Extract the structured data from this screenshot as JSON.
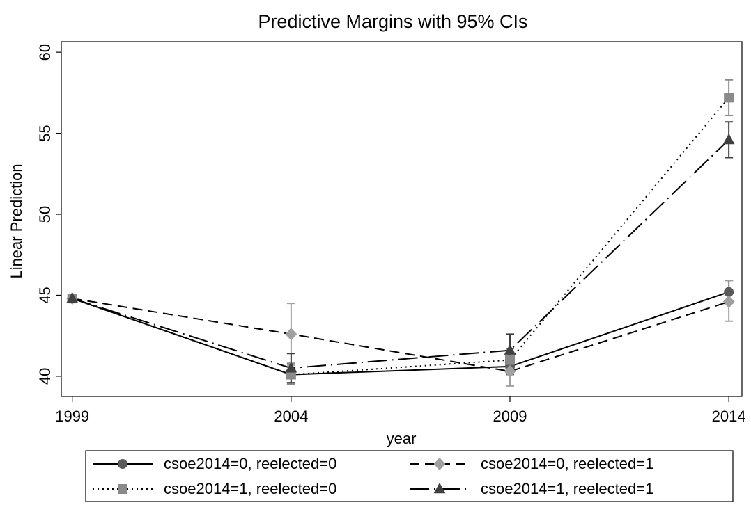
{
  "chart_data": {
    "type": "line",
    "title": "Predictive Margins with 95% CIs",
    "x_label": "year",
    "y_label": "Linear Prediction",
    "x": [
      1999,
      2004,
      2009,
      2014
    ],
    "xlim": [
      1998.75,
      2014.3
    ],
    "xticks": [
      1999,
      2004,
      2009,
      2014
    ],
    "ylim": [
      38.75,
      60.65
    ],
    "yticks": [
      40,
      45,
      50,
      55,
      60
    ],
    "line_color": "#000000",
    "series": [
      {
        "name": "csoe2014=0, reelected=0",
        "color": "#5a5a5a",
        "marker": "circle",
        "line_style": "solid",
        "values": [
          44.8,
          40.1,
          40.6,
          45.2
        ],
        "ci_lower": [
          44.6,
          39.6,
          40.1,
          44.5
        ],
        "ci_upper": [
          45.0,
          40.7,
          41.1,
          45.9
        ]
      },
      {
        "name": "csoe2014=0, reelected=1",
        "color": "#a0a0a0",
        "marker": "diamond",
        "line_style": "dashed",
        "values": [
          44.8,
          42.6,
          40.3,
          44.6
        ],
        "ci_lower": [
          44.6,
          40.7,
          39.4,
          43.4
        ],
        "ci_upper": [
          45.0,
          44.5,
          41.0,
          45.9
        ]
      },
      {
        "name": "csoe2014=1, reelected=0",
        "color": "#8a8a8a",
        "marker": "square",
        "line_style": "dotted",
        "values": [
          44.8,
          40.1,
          41.0,
          57.2
        ],
        "ci_lower": [
          44.6,
          39.5,
          40.3,
          56.1
        ],
        "ci_upper": [
          45.0,
          40.8,
          41.7,
          58.3
        ]
      },
      {
        "name": "csoe2014=1, reelected=1",
        "color": "#404040",
        "marker": "triangle",
        "line_style": "longdash-dot",
        "values": [
          44.8,
          40.5,
          41.6,
          54.6
        ],
        "ci_lower": [
          44.6,
          39.6,
          40.6,
          53.5
        ],
        "ci_upper": [
          45.0,
          41.4,
          42.6,
          55.7
        ]
      }
    ]
  }
}
